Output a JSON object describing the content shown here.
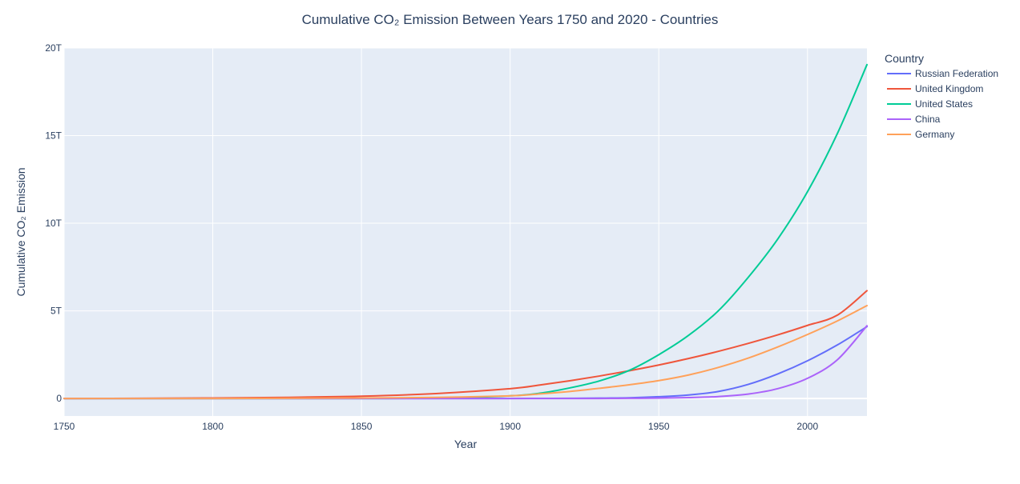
{
  "chart_data": {
    "type": "line",
    "title": "Cumulative CO₂ Emission Between Years 1750 and 2020 - Countries",
    "xlabel": "Year",
    "ylabel": "Cumulative CO₂ Emission",
    "xlim": [
      1750,
      2020
    ],
    "ylim": [
      -1000000000000,
      20000000000000
    ],
    "x_ticks": [
      1750,
      1800,
      1850,
      1900,
      1950,
      2000
    ],
    "x_tick_labels": [
      "1750",
      "1800",
      "1850",
      "1900",
      "1950",
      "2000"
    ],
    "y_ticks": [
      0,
      5000000000000,
      10000000000000,
      15000000000000,
      20000000000000
    ],
    "y_tick_labels": [
      "0",
      "5T",
      "10T",
      "15T",
      "20T"
    ],
    "grid": true,
    "legend_title": "Country",
    "legend_position": "right",
    "plot_background": "#E5ECF6",
    "x": [
      1750,
      1775,
      1800,
      1825,
      1850,
      1875,
      1900,
      1910,
      1920,
      1930,
      1940,
      1950,
      1960,
      1970,
      1980,
      1990,
      2000,
      2010,
      2020
    ],
    "series": [
      {
        "name": "Russian Federation",
        "color": "#636EFA",
        "values": [
          0,
          0,
          0,
          0,
          0,
          0,
          0,
          5000000000,
          10000000000,
          20000000000,
          40000000000,
          100000000000,
          200000000000,
          400000000000,
          800000000000,
          1400000000000,
          2150000000000,
          3050000000000,
          4100000000000
        ]
      },
      {
        "name": "United Kingdom",
        "color": "#EF553B",
        "values": [
          0,
          10000000000,
          30000000000,
          60000000000,
          130000000000,
          280000000000,
          560000000000,
          770000000000,
          1010000000000,
          1280000000000,
          1580000000000,
          1910000000000,
          2280000000000,
          2690000000000,
          3140000000000,
          3630000000000,
          4170000000000,
          4750000000000,
          6150000000000
        ]
      },
      {
        "name": "United States",
        "color": "#00CC96",
        "values": [
          0,
          0,
          0,
          0,
          0,
          20000000000,
          150000000000,
          300000000000,
          600000000000,
          1000000000000,
          1600000000000,
          2500000000000,
          3600000000000,
          5000000000000,
          6900000000000,
          9100000000000,
          11800000000000,
          15100000000000,
          19050000000000
        ]
      },
      {
        "name": "China",
        "color": "#AB63FA",
        "values": [
          0,
          0,
          0,
          0,
          0,
          0,
          0,
          0,
          0,
          0,
          10000000000,
          20000000000,
          50000000000,
          110000000000,
          250000000000,
          560000000000,
          1150000000000,
          2200000000000,
          4150000000000
        ]
      },
      {
        "name": "Germany",
        "color": "#FFA15A",
        "values": [
          0,
          0,
          0,
          10000000000,
          30000000000,
          60000000000,
          150000000000,
          260000000000,
          400000000000,
          580000000000,
          780000000000,
          1020000000000,
          1340000000000,
          1770000000000,
          2300000000000,
          2940000000000,
          3650000000000,
          4420000000000,
          5300000000000
        ]
      }
    ]
  }
}
